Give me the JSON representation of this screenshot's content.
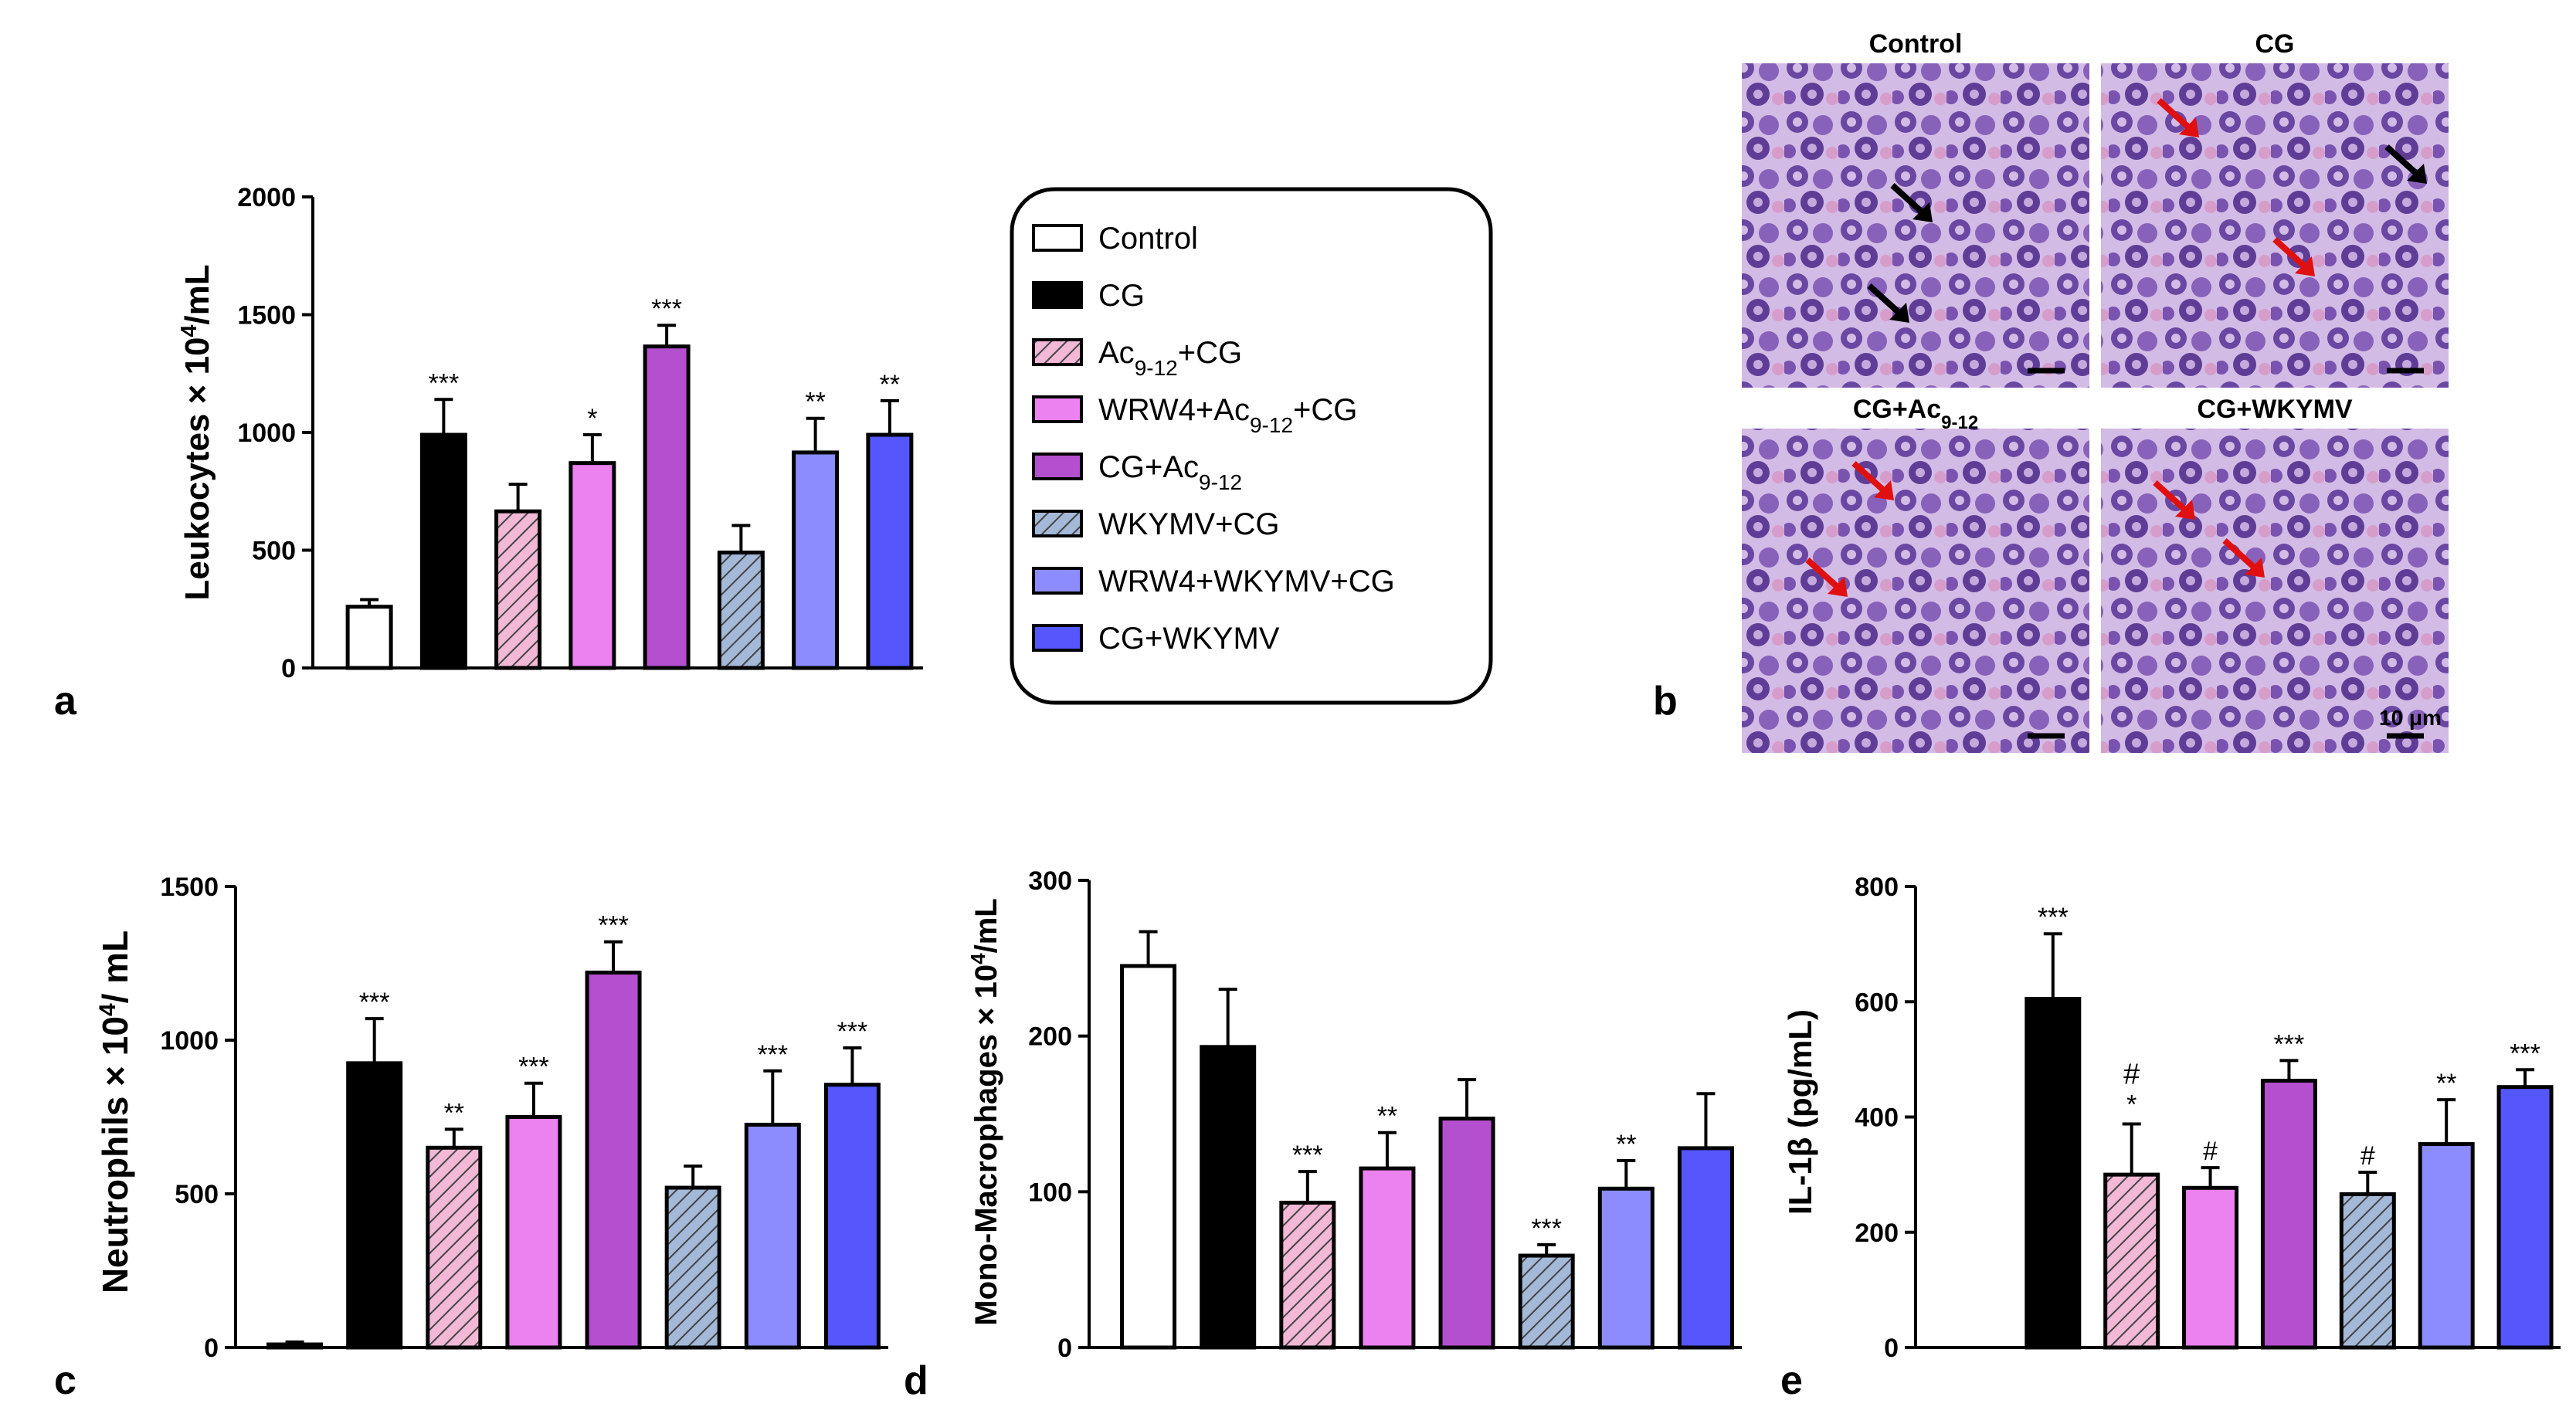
{
  "figure": {
    "panel_letters": [
      "a",
      "b",
      "c",
      "d",
      "e"
    ]
  },
  "colors": {
    "white": "#ffffff",
    "black": "#000000",
    "hatch_pink": "#f2b8d6",
    "light_violet": "#ec82f0",
    "purple": "#b450cf",
    "hatch_blue": "#a4b8d8",
    "periwinkle": "#8c8cff",
    "blue": "#5556fb"
  },
  "legend": {
    "items": [
      {
        "label": "Control",
        "sub": "",
        "after": "",
        "style": "white"
      },
      {
        "label": "CG",
        "sub": "",
        "after": "",
        "style": "black"
      },
      {
        "label": "Ac",
        "sub": "9-12",
        "after": "+CG",
        "style": "hatch_pink"
      },
      {
        "label": "WRW4+Ac",
        "sub": "9-12",
        "after": "+CG",
        "style": "light_violet"
      },
      {
        "label": "CG+Ac",
        "sub": "9-12",
        "after": "",
        "style": "purple"
      },
      {
        "label": "WKYMV+CG",
        "sub": "",
        "after": "",
        "style": "hatch_blue"
      },
      {
        "label": "WRW4+WKYMV+CG",
        "sub": "",
        "after": "",
        "style": "periwinkle"
      },
      {
        "label": "CG+WKYMV",
        "sub": "",
        "after": "",
        "style": "blue"
      }
    ]
  },
  "micrographs": {
    "titles": [
      "Control",
      "CG",
      "CG+Ac",
      "CG+WKYMV"
    ],
    "title_subs": [
      "",
      "",
      "9-12",
      ""
    ],
    "scale_bar_label": "10 μm"
  },
  "chart_data": [
    {
      "id": "a",
      "type": "bar",
      "ylabel": "Leukocytes × 10",
      "ylabel_sup": "4",
      "ylabel_after": "/mL",
      "ylim": [
        0,
        2000
      ],
      "yticks": [
        0,
        500,
        1000,
        1500,
        2000
      ],
      "categories": [
        "Control",
        "CG",
        "Ac9-12+CG",
        "WRW4+Ac9-12+CG",
        "CG+Ac9-12",
        "WKYMV+CG",
        "WRW4+WKYMV+CG",
        "CG+WKYMV"
      ],
      "values": [
        260,
        990,
        665,
        870,
        1365,
        490,
        915,
        990
      ],
      "errors": [
        30,
        150,
        115,
        120,
        90,
        115,
        145,
        145
      ],
      "annotations": [
        "",
        "***",
        "",
        "*",
        "***",
        "",
        "**",
        "**"
      ],
      "annotations2": [
        "",
        "",
        "",
        "",
        "",
        "",
        "",
        ""
      ]
    },
    {
      "id": "c",
      "type": "bar",
      "ylabel": "Neutrophils × 10",
      "ylabel_sup": "4",
      "ylabel_after": "/ mL",
      "ylim": [
        0,
        1500
      ],
      "yticks": [
        0,
        500,
        1000,
        1500
      ],
      "categories": [
        "Control",
        "CG",
        "Ac9-12+CG",
        "WRW4+Ac9-12+CG",
        "CG+Ac9-12",
        "WKYMV+CG",
        "WRW4+WKYMV+CG",
        "CG+WKYMV"
      ],
      "values": [
        10,
        925,
        650,
        750,
        1220,
        520,
        725,
        855
      ],
      "errors": [
        8,
        145,
        60,
        110,
        100,
        70,
        175,
        120
      ],
      "annotations": [
        "",
        "***",
        "**",
        "***",
        "***",
        "",
        "***",
        "***"
      ],
      "annotations2": [
        "",
        "",
        "",
        "",
        "",
        "",
        "",
        ""
      ]
    },
    {
      "id": "d",
      "type": "bar",
      "ylabel": "Mono-Macrophages × 10",
      "ylabel_sup": "4",
      "ylabel_after": "/mL",
      "ylim": [
        0,
        300
      ],
      "yticks": [
        0,
        100,
        200,
        300
      ],
      "categories": [
        "Control",
        "CG",
        "Ac9-12+CG",
        "WRW4+Ac9-12+CG",
        "CG+Ac9-12",
        "WKYMV+CG",
        "WRW4+WKYMV+CG",
        "CG+WKYMV"
      ],
      "values": [
        245,
        193,
        93,
        115,
        147,
        59,
        102,
        128
      ],
      "errors": [
        22,
        37,
        20,
        23,
        25,
        7,
        18,
        35
      ],
      "annotations": [
        "",
        "",
        "***",
        "**",
        "",
        "***",
        "**",
        ""
      ],
      "annotations2": [
        "",
        "",
        "",
        "",
        "",
        "",
        "",
        ""
      ]
    },
    {
      "id": "e",
      "type": "bar",
      "ylabel": "IL-1β (pg/mL)",
      "ylabel_sup": "",
      "ylabel_after": "",
      "ylim": [
        0,
        800
      ],
      "yticks": [
        0,
        200,
        400,
        600,
        800
      ],
      "categories": [
        "Control",
        "CG",
        "Ac9-12+CG",
        "WRW4+Ac9-12+CG",
        "CG+Ac9-12",
        "WKYMV+CG",
        "WRW4+WKYMV+CG",
        "CG+WKYMV"
      ],
      "values": [
        0,
        605,
        300,
        277,
        463,
        266,
        353,
        452
      ],
      "errors": [
        0,
        113,
        88,
        35,
        35,
        38,
        77,
        30
      ],
      "annotations": [
        "",
        "***",
        "*",
        "#",
        "***",
        "#",
        "**",
        "***"
      ],
      "annotations2": [
        "",
        "",
        "#",
        "",
        "",
        "",
        "",
        ""
      ]
    }
  ]
}
